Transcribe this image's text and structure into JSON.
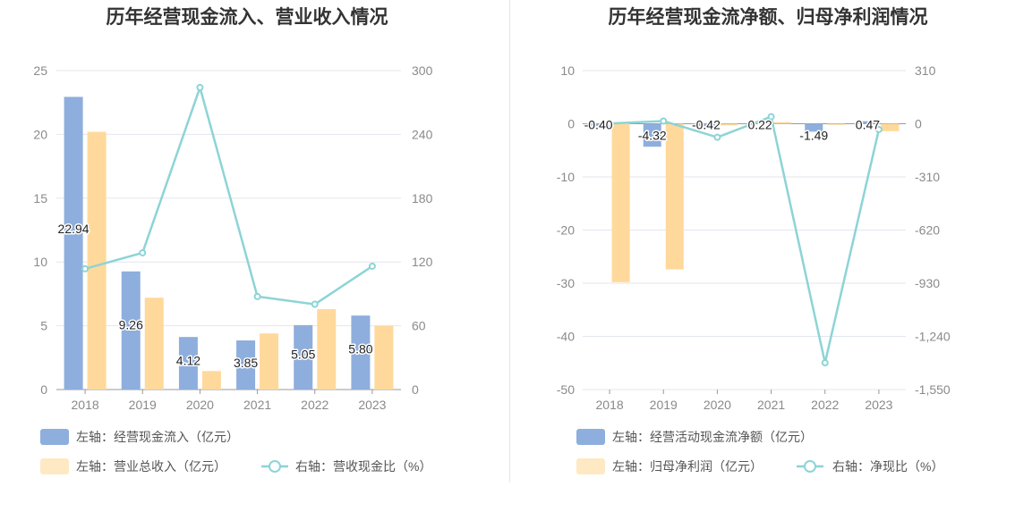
{
  "chart_data": [
    {
      "type": "bar",
      "title": "历年经营现金流入、营业收入情况",
      "categories": [
        "2018",
        "2019",
        "2020",
        "2021",
        "2022",
        "2023"
      ],
      "y_left": {
        "min": 0,
        "max": 25,
        "ticks": [
          "0",
          "5",
          "10",
          "15",
          "20",
          "25"
        ]
      },
      "y_right": {
        "min": 0,
        "max": 300,
        "ticks": [
          "0",
          "60",
          "120",
          "180",
          "240",
          "300"
        ]
      },
      "series": [
        {
          "name": "左轴：经营现金流入（亿元）",
          "kind": "bar",
          "axis": "left",
          "color": "#8eaedd",
          "values": [
            22.94,
            9.26,
            4.12,
            3.85,
            5.05,
            5.8
          ],
          "labels": [
            "22.94",
            "9.26",
            "4.12",
            "3.85",
            "5.05",
            "5.80"
          ]
        },
        {
          "name": "左轴：营业总收入（亿元）",
          "kind": "bar",
          "axis": "left",
          "color": "#ffd99b",
          "values": [
            20.2,
            7.2,
            1.45,
            4.4,
            6.3,
            5.0
          ]
        },
        {
          "name": "右轴：营收现金比（%）",
          "kind": "line",
          "axis": "right",
          "color": "#8dd4d6",
          "values": [
            113.6,
            128.6,
            284.1,
            87.5,
            80.2,
            116.0
          ]
        }
      ],
      "grid": true,
      "legend": "bottom"
    },
    {
      "type": "bar",
      "title": "历年经营现金流净额、归母净利润情况",
      "categories": [
        "2018",
        "2019",
        "2020",
        "2021",
        "2022",
        "2023"
      ],
      "y_left": {
        "min": -50,
        "max": 10,
        "ticks": [
          "10",
          "0",
          "-10",
          "-20",
          "-30",
          "-40",
          "-50"
        ]
      },
      "y_right": {
        "min": -1550,
        "max": 310,
        "ticks": [
          "310",
          "0",
          "-310",
          "-620",
          "-930",
          "-1,240",
          "-1,550"
        ]
      },
      "series": [
        {
          "name": "左轴：经营活动现金流净额（亿元）",
          "kind": "bar",
          "axis": "left",
          "color": "#8eaedd",
          "values": [
            -0.4,
            -4.32,
            -0.42,
            0.22,
            -1.49,
            0.47
          ],
          "labels": [
            "-0.40",
            "-4.32",
            "-0.42",
            "0.22",
            "-1.49",
            "0.47"
          ]
        },
        {
          "name": "左轴：归母净利润（亿元）",
          "kind": "bar",
          "axis": "left",
          "color": "#ffd99b",
          "values": [
            -29.8,
            -27.4,
            -0.3,
            0.3,
            -0.2,
            -1.4
          ]
        },
        {
          "name": "右轴：净现比（%）",
          "kind": "line",
          "axis": "right",
          "color": "#8dd4d6",
          "values": [
            1.3,
            15.8,
            -78.9,
            41.3,
            -1393.8,
            -33.6
          ]
        }
      ],
      "grid": true,
      "legend": "bottom"
    }
  ]
}
